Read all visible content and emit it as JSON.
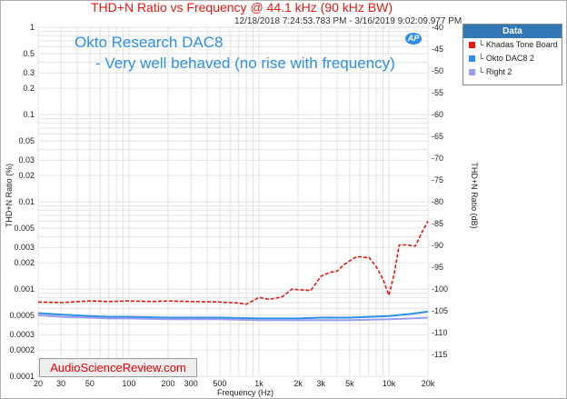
{
  "chart_data": {
    "type": "line",
    "title": "THD+N Ratio vs Frequency @ 44.1 kHz (90 kHz BW)",
    "subtitle": "12/18/2018 7:24:53.783 PM - 3/16/2019 9:02:09.977 PM",
    "annotations": [
      "Okto Research DAC8",
      "- Very well behaved (no rise with frequency)"
    ],
    "logo_text": "AP",
    "xlabel": "Frequency (Hz)",
    "ylabel_left": "THD+N Ratio (%)",
    "ylabel_right": "THD+N Ratio (dB)",
    "xscale": "log",
    "yscale": "log",
    "xlim": [
      20,
      20000
    ],
    "ylim": [
      0.0001,
      1
    ],
    "ylim_right_db": [
      -120,
      -40
    ],
    "x_ticks": [
      {
        "v": 20,
        "label": "20"
      },
      {
        "v": 30,
        "label": "30"
      },
      {
        "v": 50,
        "label": "50"
      },
      {
        "v": 100,
        "label": "100"
      },
      {
        "v": 200,
        "label": "200"
      },
      {
        "v": 300,
        "label": "300"
      },
      {
        "v": 500,
        "label": "500"
      },
      {
        "v": 1000,
        "label": "1k"
      },
      {
        "v": 2000,
        "label": "2k"
      },
      {
        "v": 3000,
        "label": "3k"
      },
      {
        "v": 5000,
        "label": "5k"
      },
      {
        "v": 10000,
        "label": "10k"
      },
      {
        "v": 20000,
        "label": "20k"
      }
    ],
    "y_ticks": [
      {
        "v": 1,
        "label": "1"
      },
      {
        "v": 0.5,
        "label": "0.5"
      },
      {
        "v": 0.3,
        "label": "0.3"
      },
      {
        "v": 0.2,
        "label": "0.2"
      },
      {
        "v": 0.1,
        "label": "0.1"
      },
      {
        "v": 0.05,
        "label": "0.05"
      },
      {
        "v": 0.03,
        "label": "0.03"
      },
      {
        "v": 0.02,
        "label": "0.02"
      },
      {
        "v": 0.01,
        "label": "0.01"
      },
      {
        "v": 0.005,
        "label": "0.005"
      },
      {
        "v": 0.003,
        "label": "0.003"
      },
      {
        "v": 0.002,
        "label": "0.002"
      },
      {
        "v": 0.001,
        "label": "0.001"
      },
      {
        "v": 0.0005,
        "label": "0.0005"
      },
      {
        "v": 0.0003,
        "label": "0.0003"
      },
      {
        "v": 0.0002,
        "label": "0.0002"
      },
      {
        "v": 0.0001,
        "label": "0.0001"
      }
    ],
    "y_ticks_right": [
      {
        "v": -40,
        "label": "-40"
      },
      {
        "v": -45,
        "label": "-45"
      },
      {
        "v": -50,
        "label": "-50"
      },
      {
        "v": -55,
        "label": "-55"
      },
      {
        "v": -60,
        "label": "-60"
      },
      {
        "v": -65,
        "label": "-65"
      },
      {
        "v": -70,
        "label": "-70"
      },
      {
        "v": -75,
        "label": "-75"
      },
      {
        "v": -80,
        "label": "-80"
      },
      {
        "v": -85,
        "label": "-85"
      },
      {
        "v": -90,
        "label": "-90"
      },
      {
        "v": -95,
        "label": "-95"
      },
      {
        "v": -100,
        "label": "-100"
      },
      {
        "v": -105,
        "label": "-105"
      },
      {
        "v": -110,
        "label": "-110"
      },
      {
        "v": -115,
        "label": "-115"
      }
    ],
    "grid": true,
    "legend_position": "top-right",
    "series": [
      {
        "name": "Khadas Tone Board",
        "color": "#e8170f",
        "dash": true,
        "x": [
          20,
          30,
          50,
          70,
          100,
          150,
          200,
          300,
          500,
          700,
          800,
          1000,
          1200,
          1500,
          1800,
          2000,
          2500,
          3000,
          3500,
          4000,
          4500,
          5000,
          5500,
          6000,
          6500,
          7000,
          8000,
          9000,
          10000,
          11000,
          12000,
          14000,
          16000,
          18000,
          20000
        ],
        "y": [
          0.00071,
          0.0007,
          0.00073,
          0.00072,
          0.00073,
          0.00072,
          0.00073,
          0.00072,
          0.00071,
          0.00069,
          0.00067,
          0.0008,
          0.00076,
          0.00081,
          0.001,
          0.00098,
          0.00096,
          0.0014,
          0.00155,
          0.0016,
          0.0019,
          0.0021,
          0.0023,
          0.00235,
          0.0023,
          0.00232,
          0.0018,
          0.0013,
          0.00085,
          0.0015,
          0.0032,
          0.0032,
          0.0031,
          0.0045,
          0.006
        ]
      },
      {
        "name": "Okto DAC8  2",
        "color": "#2d8fe6",
        "dash": false,
        "x": [
          20,
          30,
          50,
          70,
          100,
          200,
          300,
          500,
          1000,
          2000,
          3000,
          5000,
          10000,
          15000,
          20000
        ],
        "y": [
          0.00053,
          0.00051,
          0.00049,
          0.00048,
          0.00048,
          0.00047,
          0.00047,
          0.00047,
          0.00046,
          0.00046,
          0.00047,
          0.00047,
          0.00049,
          0.00052,
          0.00055
        ]
      },
      {
        "name": "Right 2",
        "color": "#9a9ef0",
        "dash": false,
        "x": [
          20,
          30,
          50,
          70,
          100,
          200,
          300,
          500,
          1000,
          2000,
          3000,
          5000,
          10000,
          15000,
          20000
        ],
        "y": [
          0.0005,
          0.00048,
          0.00047,
          0.00046,
          0.00046,
          0.00045,
          0.00045,
          0.00045,
          0.00044,
          0.00044,
          0.00044,
          0.00044,
          0.00045,
          0.00046,
          0.00047
        ]
      }
    ]
  },
  "legend": {
    "header": "Data",
    "items": [
      {
        "label": "└ Khadas Tone Board",
        "color": "#e8170f"
      },
      {
        "label": "└ Okto DAC8  2",
        "color": "#2d8fe6"
      },
      {
        "label": "└ Right 2",
        "color": "#9a9ef0"
      }
    ]
  },
  "watermark": "AudioScienceReview.com"
}
